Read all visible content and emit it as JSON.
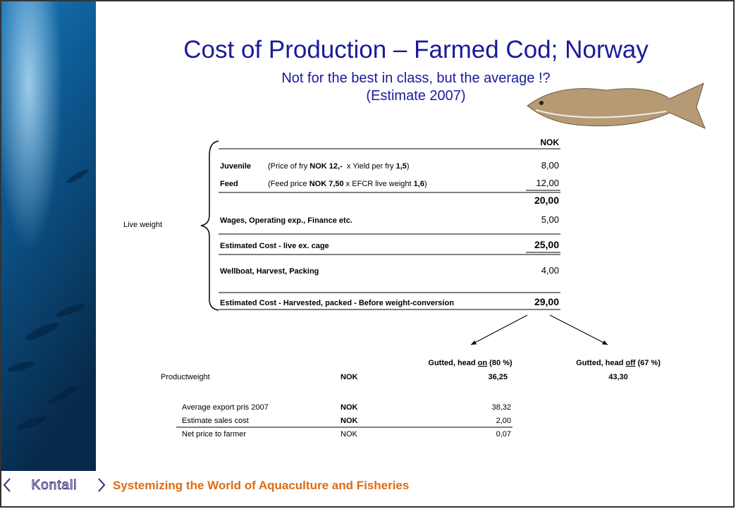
{
  "title": "Cost of Production – Farmed Cod; Norway",
  "subtitle": [
    "Not for the best in class, but the average !?",
    "(Estimate 2007)"
  ],
  "side_label": "Live weight",
  "table": {
    "header": "NOK",
    "rows": [
      {
        "label": "Juvenile",
        "detail": [
          {
            "t": "(Price of fry ",
            "b": false
          },
          {
            "t": "NOK 12,-",
            "b": true
          },
          {
            "t": "  x Yield per fry ",
            "b": false
          },
          {
            "t": "1,5",
            "b": true
          },
          {
            "t": ")",
            "b": false
          }
        ],
        "value": "8,00",
        "bold": false,
        "underline": false
      },
      {
        "label": "Feed",
        "detail": [
          {
            "t": "(Feed price ",
            "b": false
          },
          {
            "t": "NOK 7,50",
            "b": true
          },
          {
            "t": " x EFCR live weight ",
            "b": false
          },
          {
            "t": "1,6",
            "b": true
          },
          {
            "t": ")",
            "b": false
          }
        ],
        "value": "12,00",
        "bold": false,
        "underline": true
      },
      {
        "label": null,
        "detail": [],
        "value": "20,00",
        "bold": true,
        "underline": false
      },
      {
        "label": "Wages, Operating exp., Finance etc.",
        "detail": [],
        "value": "5,00",
        "bold": false,
        "underline": false
      },
      {
        "label": "Estimated Cost - live ex. cage",
        "detail": [],
        "value": "25,00",
        "bold": true,
        "underline": true
      },
      {
        "label": "Wellboat, Harvest, Packing",
        "detail": [],
        "value": "4,00",
        "bold": false,
        "underline": false
      },
      {
        "label": "Estimated Cost - Harvested, packed - Before weight-conversion",
        "detail": [],
        "value": "29,00",
        "bold": true,
        "underline": true
      }
    ]
  },
  "products": [
    [
      {
        "t": "Gutted, head ",
        "u": false
      },
      {
        "t": "on",
        "u": true
      },
      {
        "t": " (80 %)",
        "u": false
      }
    ],
    [
      {
        "t": "Gutted, head ",
        "u": false
      },
      {
        "t": "off",
        "u": true
      },
      {
        "t": " (67 %)",
        "u": false
      }
    ]
  ],
  "productweight": {
    "label": "Productweight",
    "unit": "NOK",
    "values": [
      "36,25",
      "43,30"
    ]
  },
  "prices": [
    {
      "label": "Average export pris 2007",
      "unit": "NOK",
      "value": "38,32",
      "bold": true
    },
    {
      "label": "Estimate sales cost",
      "unit": "NOK",
      "value": "2,00",
      "bold": true
    },
    {
      "label": "Net  price to farmer",
      "unit": "NOK",
      "value": "0,07",
      "bold": false
    }
  ],
  "footer": {
    "logo": "Kontali",
    "tagline": "Systemizing the World of Aquaculture and Fisheries"
  }
}
